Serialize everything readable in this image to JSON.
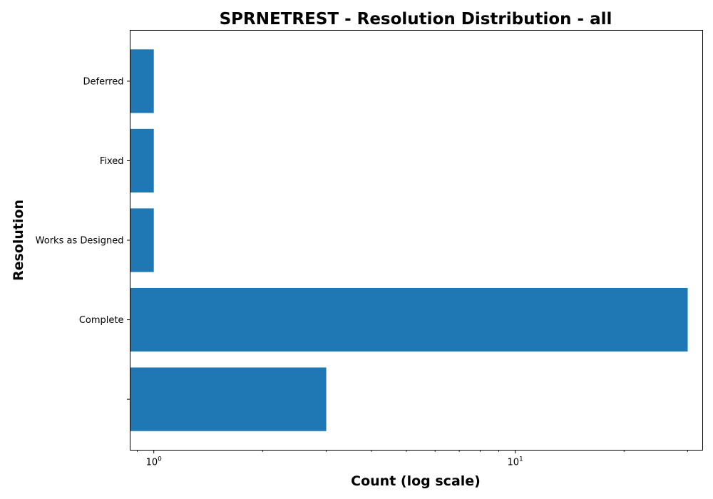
{
  "chart_data": {
    "type": "bar",
    "orientation": "horizontal",
    "title": "SPRNETREST - Resolution Distribution - all",
    "xlabel": "Count (log scale)",
    "ylabel": "Resolution",
    "x_scale": "log",
    "xlim": [
      0.86,
      33
    ],
    "x_ticks": [
      {
        "value": 1,
        "base": "10",
        "exp": "0"
      },
      {
        "value": 10,
        "base": "10",
        "exp": "1"
      }
    ],
    "categories": [
      "",
      "Complete",
      "Works as Designed",
      "Fixed",
      "Deferred"
    ],
    "values": [
      3,
      30,
      1,
      1,
      1
    ],
    "bar_color": "#1f77b4",
    "grid": false,
    "legend": "none"
  }
}
